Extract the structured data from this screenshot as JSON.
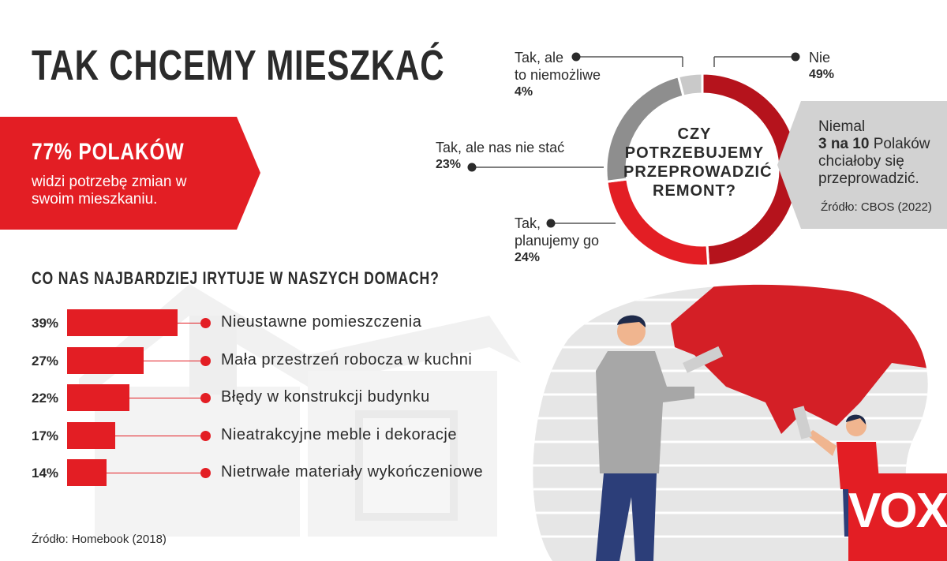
{
  "title": "TAK CHCEMY MIESZKAĆ",
  "banner": {
    "headline": "77% POLAKÓW",
    "subtext": "widzi potrzebę zmian w swoim mieszkaniu."
  },
  "irritations": {
    "heading": "CO NAS NAJBARDZIEJ IRYTUJE W NASZYCH DOMACH?",
    "source": "Źródło: Homebook (2018)"
  },
  "donut": {
    "center_text": [
      "CZY",
      "POTRZEBUJEMY",
      "PRZEPROWADZIĆ",
      "REMONT?"
    ],
    "labels": {
      "nie": {
        "line1": "Nie",
        "line2": "",
        "pct": "49%"
      },
      "niemozliwe": {
        "line1": "Tak, ale",
        "line2": "to niemożliwe",
        "pct": "4%"
      },
      "nie_stac": {
        "line1": "Tak, ale nas nie stać",
        "line2": "",
        "pct": "23%"
      },
      "planujemy": {
        "line1": "Tak,",
        "line2": "planujemy go",
        "pct": "24%"
      }
    }
  },
  "side_note": {
    "line1": "Niemal",
    "line2_bold": "3 na 10",
    "line2_rest": " Polaków chciałoby się przeprowadzić.",
    "source": "Źródło: CBOS (2022)"
  },
  "logo": "VOX",
  "colors": {
    "accent_red": "#e31e24",
    "dark_red": "#b5131c",
    "grey": "#8e8e8e",
    "light_grey": "#c9c9c9",
    "text": "#2b2b2b"
  },
  "chart_data": [
    {
      "type": "bar",
      "orientation": "horizontal",
      "title": "CO NAS NAJBARDZIEJ IRYTUJE W NASZYCH DOMACH?",
      "categories": [
        "Nieustawne pomieszczenia",
        "Mała przestrzeń robocza w kuchni",
        "Błędy w konstrukcji budynku",
        "Nieatrakcyjne meble i dekoracje",
        "Nietrwałe materiały wykończeniowe"
      ],
      "values": [
        39,
        27,
        22,
        17,
        14
      ],
      "value_labels": [
        "39%",
        "27%",
        "22%",
        "17%",
        "14%"
      ],
      "unit": "%"
    },
    {
      "type": "pie",
      "variant": "donut",
      "title": "CZY POTRZEBUJEMY PRZEPROWADZIĆ REMONT?",
      "categories": [
        "Nie",
        "Tak, planujemy go",
        "Tak, ale nas nie stać",
        "Tak, ale to niemożliwe"
      ],
      "values": [
        49,
        24,
        23,
        4
      ],
      "colors": [
        "#b5131c",
        "#e31e24",
        "#8e8e8e",
        "#c9c9c9"
      ]
    }
  ]
}
